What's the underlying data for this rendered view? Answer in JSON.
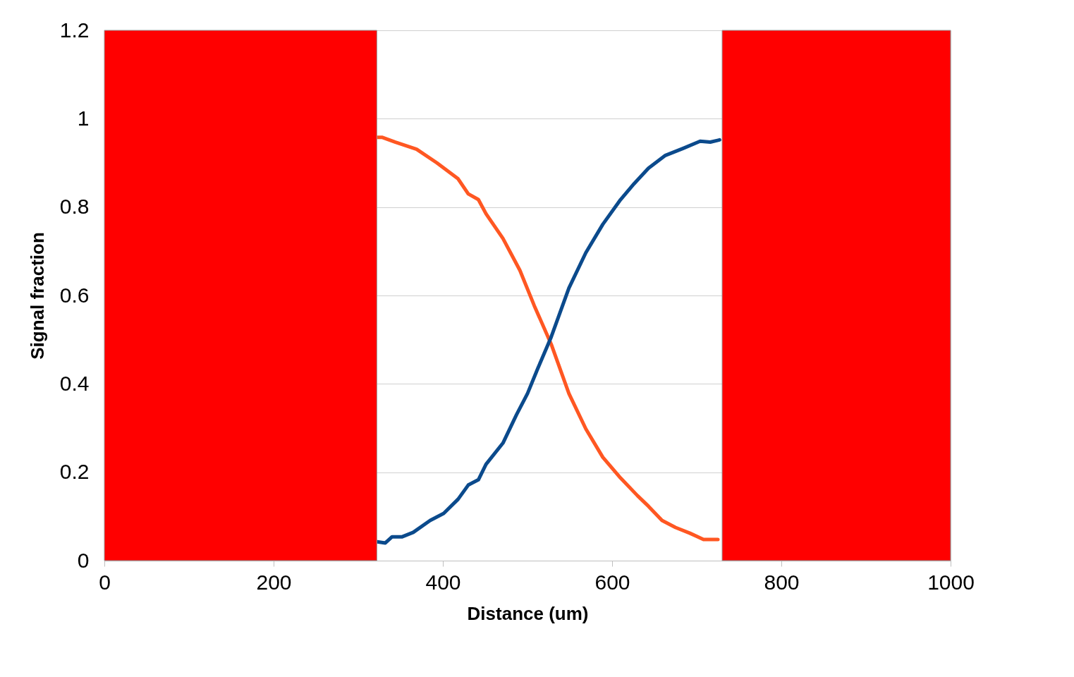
{
  "chart_data": {
    "type": "line",
    "xlabel": "Distance (um)",
    "ylabel": "Signal fraction",
    "xlim": [
      0,
      1000
    ],
    "ylim": [
      0,
      1.2
    ],
    "xticks": [
      0,
      200,
      400,
      600,
      800,
      1000
    ],
    "yticks": [
      0,
      0.2,
      0.4,
      0.6,
      0.8,
      1,
      1.2
    ],
    "grid": "y",
    "series": [
      {
        "color": "#ff5722",
        "x": [
          321,
          328,
          344,
          369,
          393,
          418,
          430,
          442,
          451,
          471,
          491,
          508,
          528,
          549,
          569,
          589,
          610,
          630,
          643,
          659,
          675,
          692,
          708,
          725
        ],
        "values": [
          0.958,
          0.958,
          0.947,
          0.931,
          0.9,
          0.864,
          0.83,
          0.817,
          0.785,
          0.729,
          0.657,
          0.577,
          0.49,
          0.378,
          0.298,
          0.234,
          0.187,
          0.147,
          0.123,
          0.091,
          0.075,
          0.062,
          0.048,
          0.048
        ]
      },
      {
        "color": "#0b4a8c",
        "x": [
          321,
          332,
          340,
          352,
          365,
          385,
          401,
          418,
          430,
          442,
          451,
          471,
          487,
          500,
          512,
          528,
          549,
          569,
          589,
          610,
          626,
          643,
          663,
          684,
          704,
          716,
          727
        ],
        "values": [
          0.043,
          0.04,
          0.054,
          0.054,
          0.064,
          0.091,
          0.107,
          0.139,
          0.171,
          0.183,
          0.218,
          0.266,
          0.33,
          0.378,
          0.434,
          0.506,
          0.617,
          0.697,
          0.761,
          0.817,
          0.853,
          0.888,
          0.917,
          0.933,
          0.949,
          0.947,
          0.952
        ]
      }
    ],
    "bands": [
      {
        "axis": "x",
        "from": 0,
        "to": 322,
        "color": "#ff0000"
      },
      {
        "axis": "x",
        "from": 730,
        "to": 1000,
        "color": "#ff0000"
      }
    ]
  }
}
